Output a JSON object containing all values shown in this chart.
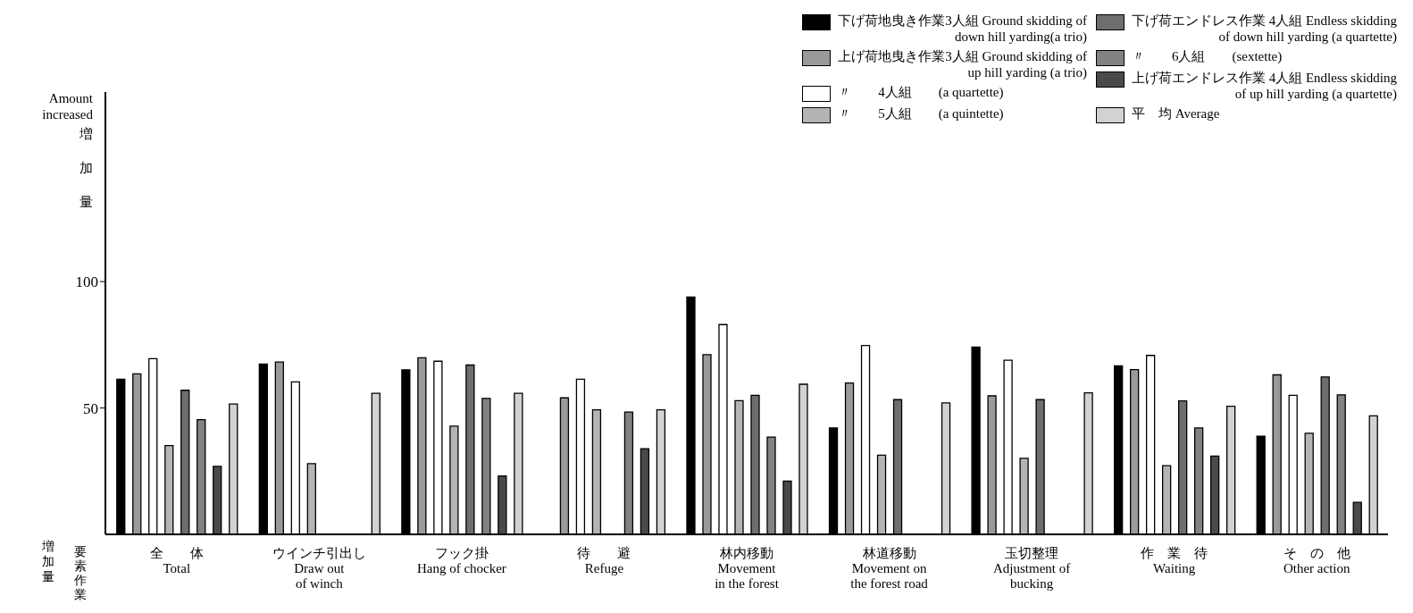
{
  "chart_data": {
    "type": "bar",
    "categories": [
      "全　　体\nTotal",
      "ウインチ引出し\nDraw out\nof winch",
      "フック掛\nHang of chocker",
      "待　　避\nRefuge",
      "林内移動\nMovement\nin the forest",
      "林道移動\nMovement on\nthe forest road",
      "玉切整理\nAdjustment of\nbucking",
      "作　業　待\nWaiting",
      "そ　の　他\nOther action"
    ],
    "series": [
      {
        "name": "下げ荷地曳き作業3人組 Ground skidding of\ndown hill yarding(a trio)",
        "color": "#000000",
        "values": [
          61.4,
          67.4,
          65.1,
          null,
          93.9,
          42.1,
          74.1,
          66.7,
          38.8
        ]
      },
      {
        "name": "上げ荷地曳き作業3人組 Ground skidding of\nup hill yarding (a trio)",
        "color": "#9a9a9a",
        "values": [
          63.5,
          68.2,
          69.9,
          54,
          71.1,
          59.9,
          54.8,
          65.2,
          63.1
        ]
      },
      {
        "name": "〃　　4人組　　(a quartette)",
        "color": "#ffffff",
        "values": [
          69.5,
          60.3,
          68.5,
          61.4,
          83,
          74.7,
          68.9,
          70.8,
          55
        ]
      },
      {
        "name": "〃　　5人組　　(a quintette)",
        "color": "#b4b4b4",
        "values": [
          35.1,
          28,
          42.8,
          49.3,
          52.9,
          31.3,
          30.1,
          27.2,
          40
        ]
      },
      {
        "name": "下げ荷エンドレス作業 4人組 Endless skidding\nof down hill yarding (a quartette)",
        "color": "#6e6e6e",
        "values": [
          57,
          null,
          67,
          null,
          55,
          53.3,
          53.3,
          52.8,
          62.3
        ]
      },
      {
        "name": "〃　　6人組　　(sextette)",
        "color": "#828282",
        "values": [
          45.4,
          null,
          53.8,
          48.4,
          38.5,
          null,
          null,
          42.1,
          55.2
        ]
      },
      {
        "name": "上げ荷エンドレス作業 4人組 Endless skidding\nof up hill yarding (a quartette)",
        "color": "#4a4a4a",
        "values": [
          26.9,
          null,
          23.1,
          33.9,
          21.1,
          null,
          null,
          31,
          12.7
        ]
      },
      {
        "name": "平　均 Average",
        "color": "#d2d2d2",
        "values": [
          51.6,
          55.8,
          55.8,
          49.3,
          59.4,
          52,
          56,
          50.7,
          46.9
        ]
      }
    ],
    "ylabel": "Amount\nincreased\n増加量",
    "annotations": [
      "増加量",
      "要素作業"
    ],
    "ylim": [
      0,
      175
    ],
    "yticks": [
      50,
      100
    ],
    "legend": "top right"
  }
}
